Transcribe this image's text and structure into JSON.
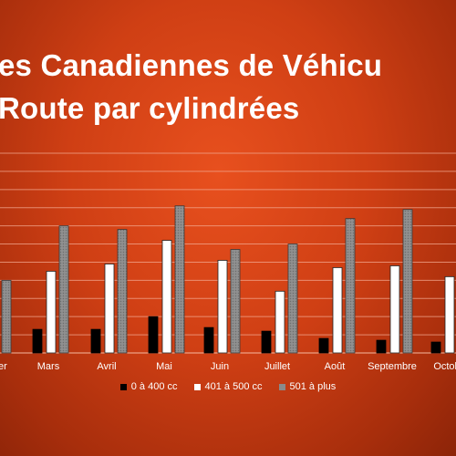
{
  "title": {
    "line1": "es Canadiennes de Véhicu",
    "line2": "Route par cylindrées"
  },
  "colors": {
    "series_0_400": "#000000",
    "series_401_500": "#ffffff",
    "series_501_plus": "#8a8a8a",
    "gridline": "#f2a890",
    "axis_text": "#ffffff"
  },
  "chart_data": {
    "type": "bar",
    "categories": [
      "er",
      "Mars",
      "Avril",
      "Mai",
      "Juin",
      "Juillet",
      "Août",
      "Septembre",
      "Octob"
    ],
    "series": [
      {
        "name": "0 à 400 cc",
        "values": [
          null,
          13,
          13,
          20,
          14,
          12,
          8,
          7,
          6
        ]
      },
      {
        "name": "401 à 500 cc",
        "values": [
          null,
          45,
          49,
          62,
          51,
          34,
          47,
          48,
          42
        ]
      },
      {
        "name": "501 à plus",
        "values": [
          40,
          70,
          68,
          81,
          57,
          60,
          74,
          79,
          74
        ]
      }
    ],
    "note_series_3_values": "approximate heights read against gridlines",
    "ylim": [
      0,
      110
    ],
    "grid": true,
    "legend_position": "bottom"
  },
  "legend": [
    {
      "label": "0 à 400 cc",
      "color": "#000000"
    },
    {
      "label": "401 à 500 cc",
      "color": "#ffffff"
    },
    {
      "label": "501 à plus",
      "color": "#8a8a8a"
    }
  ]
}
